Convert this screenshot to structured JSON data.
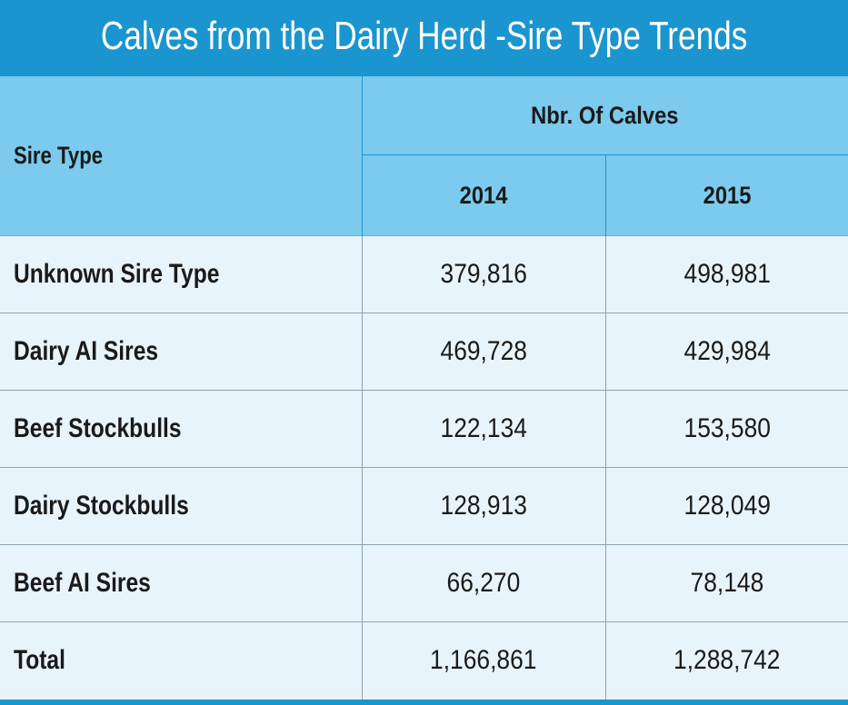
{
  "title": "Calves from the Dairy Herd -Sire Type Trends",
  "colors": {
    "title_background": "#1a95cf",
    "header_background": "#7ccaed",
    "body_background": "#e8f4fb"
  },
  "chart_data": {
    "type": "table",
    "title": "Calves from the Dairy Herd -Sire Type Trends",
    "row_header_label": "Sire Type",
    "group_label": "Nbr. Of Calves",
    "columns": [
      "2014",
      "2015"
    ],
    "rows": [
      {
        "label": "Unknown Sire Type",
        "values": [
          "379,816",
          "498,981"
        ]
      },
      {
        "label": "Dairy AI Sires",
        "values": [
          "469,728",
          "429,984"
        ]
      },
      {
        "label": "Beef Stockbulls",
        "values": [
          "122,134",
          "153,580"
        ]
      },
      {
        "label": "Dairy Stockbulls",
        "values": [
          "128,913",
          "128,049"
        ]
      },
      {
        "label": "Beef AI Sires",
        "values": [
          "66,270",
          "78,148"
        ]
      },
      {
        "label": "Total",
        "values": [
          "1,166,861",
          "1,288,742"
        ]
      }
    ]
  }
}
